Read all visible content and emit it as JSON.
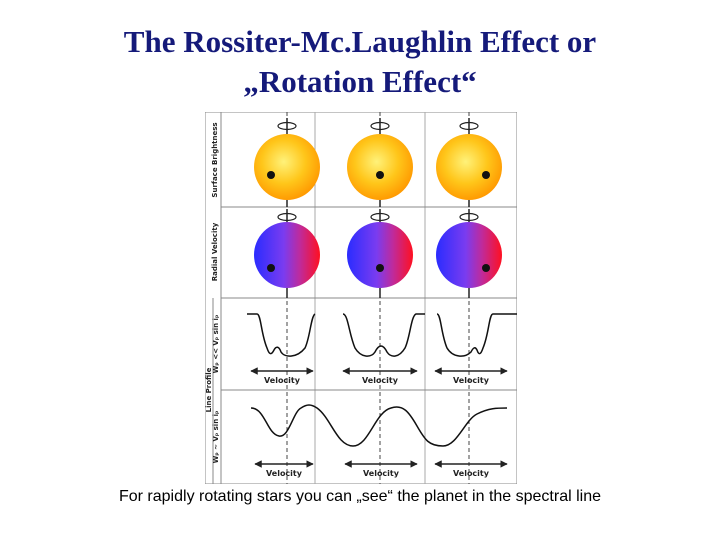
{
  "slide": {
    "title_line1": "The Rossiter-Mc.Laughlin Effect or",
    "title_line2": "„Rotation Effect“",
    "caption": "For rapidly rotating stars you can „see“ the planet in the spectral line"
  },
  "figure": {
    "row_labels": {
      "surface": "Surface Brightness",
      "velocity": "Radial Velocity",
      "line_profile": "Line Profile",
      "slow_condition": "Wₚ << Vₚ sin iₚ",
      "fast_condition": "Wₚ ~ Vₚ sin iₚ"
    },
    "axis_label": "Velocity",
    "colors": {
      "star_bright": "#fff27a",
      "star_mid": "#ffc61a",
      "star_edge": "#ff9800",
      "velocity_blue": "#2a2cff",
      "velocity_red": "#ff1020",
      "grid": "#888888",
      "title": "#151a7a"
    }
  }
}
